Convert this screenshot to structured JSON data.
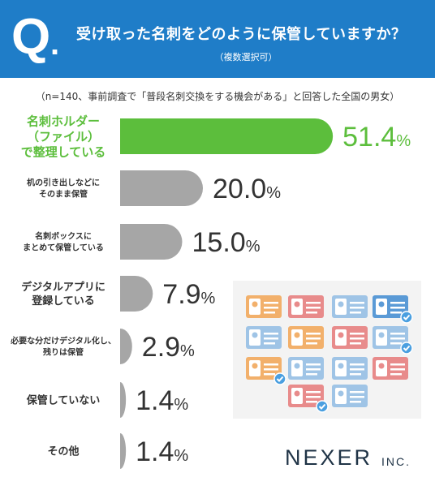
{
  "header": {
    "q_mark": "Q",
    "q_dot": ".",
    "question": "受け取った名刺をどのように保管していますか？",
    "sub": "（複数選択可）"
  },
  "note": "（n=140、事前調査で「普段名刺交換をする機会がある」と回答した全国の男女）",
  "brand": {
    "name": "NEXER",
    "suffix": "INC."
  },
  "colors": {
    "header": "#1f7dc8",
    "highlight": "#5cbe3c",
    "bar": "#a6a6a6",
    "text": "#333333",
    "brand": "#1f3346"
  },
  "chart_data": {
    "type": "bar",
    "orientation": "horizontal",
    "categories": [
      [
        "名刺ホルダー",
        "（ファイル）",
        "で整理している"
      ],
      [
        "机の引き出しなどに",
        "そのまま保管"
      ],
      [
        "名刺ボックスに",
        "まとめて保管している"
      ],
      [
        "デジタルアプリに",
        "登録している"
      ],
      [
        "必要な分だけデジタル化し、",
        "残りは保管"
      ],
      [
        "保管していない"
      ],
      [
        "その他"
      ]
    ],
    "values": [
      51.4,
      20.0,
      15.0,
      7.9,
      2.9,
      1.4,
      1.4
    ],
    "value_labels": [
      "51.4",
      "20.0",
      "15.0",
      "7.9",
      "2.9",
      "1.4",
      "1.4"
    ],
    "unit": "%",
    "highlight_index": 0
  }
}
